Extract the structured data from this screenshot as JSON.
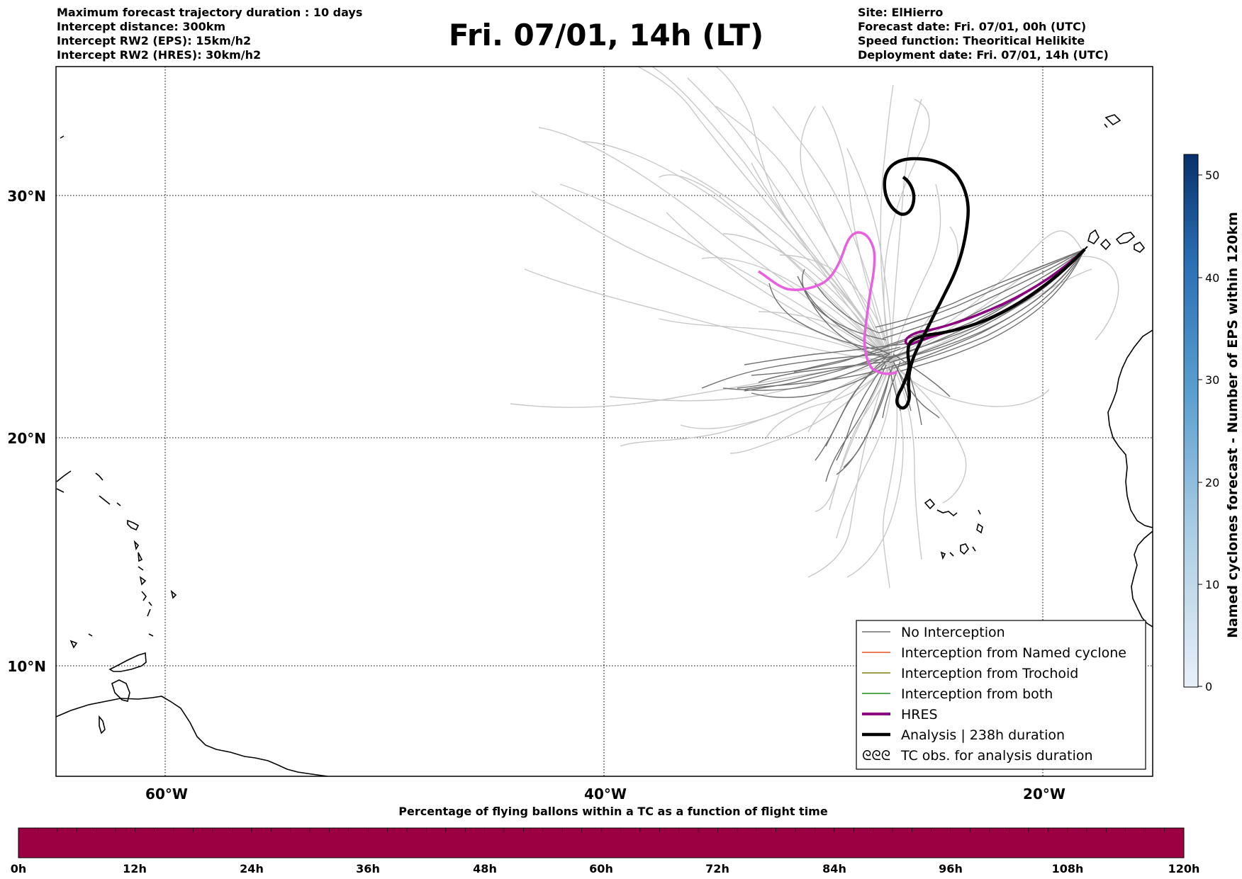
{
  "header": {
    "left_lines": [
      "Maximum forecast trajectory duration : 10 days",
      "Intercept distance: 300km",
      "Intercept RW2 (EPS):  15km/h2",
      "Intercept RW2 (HRES): 30km/h2"
    ],
    "title": "Fri. 07/01, 14h (LT)",
    "right_lines": [
      "Site: ElHierro",
      "Forecast date: Fri. 07/01, 00h (UTC)",
      "Speed function: Theoritical Helikite",
      "Deployment date: Fri. 07/01, 14h (UTC)"
    ]
  },
  "map": {
    "lon_range": [
      -65,
      -15
    ],
    "lat_range": [
      5.3,
      34.6
    ],
    "lat_ticks": [
      {
        "value": 30,
        "label": "30°N"
      },
      {
        "value": 20,
        "label": "20°N"
      },
      {
        "value": 10,
        "label": "10°N"
      }
    ],
    "lon_ticks": [
      {
        "value": -60,
        "label": "60°W"
      },
      {
        "value": -40,
        "label": "40°W"
      },
      {
        "value": -20,
        "label": "20°W"
      }
    ],
    "start_point": {
      "lon": -16.7,
      "lat": 27.4
    }
  },
  "legend": {
    "items": [
      {
        "label": "No Interception",
        "color": "#707070",
        "style": "thin"
      },
      {
        "label": "Interception from Named cyclone",
        "color": "#e8501e",
        "style": "thin"
      },
      {
        "label": "Interception from Trochoid",
        "color": "#7d7d10",
        "style": "thin"
      },
      {
        "label": "Interception from both",
        "color": "#1e8a1e",
        "style": "thin"
      },
      {
        "label": "HRES",
        "color": "#8b007f",
        "style": "thick"
      },
      {
        "label": "Analysis | 238h duration",
        "color": "#000000",
        "style": "thick"
      },
      {
        "label": "TC obs. for analysis duration",
        "color": "#000000",
        "style": "symbol",
        "symbol": "ᘓᘓᘓ"
      }
    ]
  },
  "colorbar": {
    "title": "Named cyclones forecast - Number of EPS within 120km",
    "range": [
      0,
      52
    ],
    "ticks": [
      "0",
      "10",
      "20",
      "30",
      "40",
      "50"
    ],
    "colors": [
      "#e8f0f8",
      "#a9cce4",
      "#5b9fd0",
      "#2a6fb3",
      "#08306b"
    ]
  },
  "timebar": {
    "title": "Percentage of flying ballons within a TC as a function of flight time",
    "ticks": [
      "0h",
      "12h",
      "24h",
      "36h",
      "48h",
      "60h",
      "72h",
      "84h",
      "96h",
      "108h",
      "120h"
    ],
    "fill_color": "#9c0042"
  },
  "colors": {
    "eps_trajectory": "#c8c8c8",
    "eps_no_interception": "#707070",
    "hres": "#8b007f",
    "hres_alt": "#e860e0",
    "analysis": "#000000",
    "coast": "#000000",
    "grid": "#000000"
  }
}
